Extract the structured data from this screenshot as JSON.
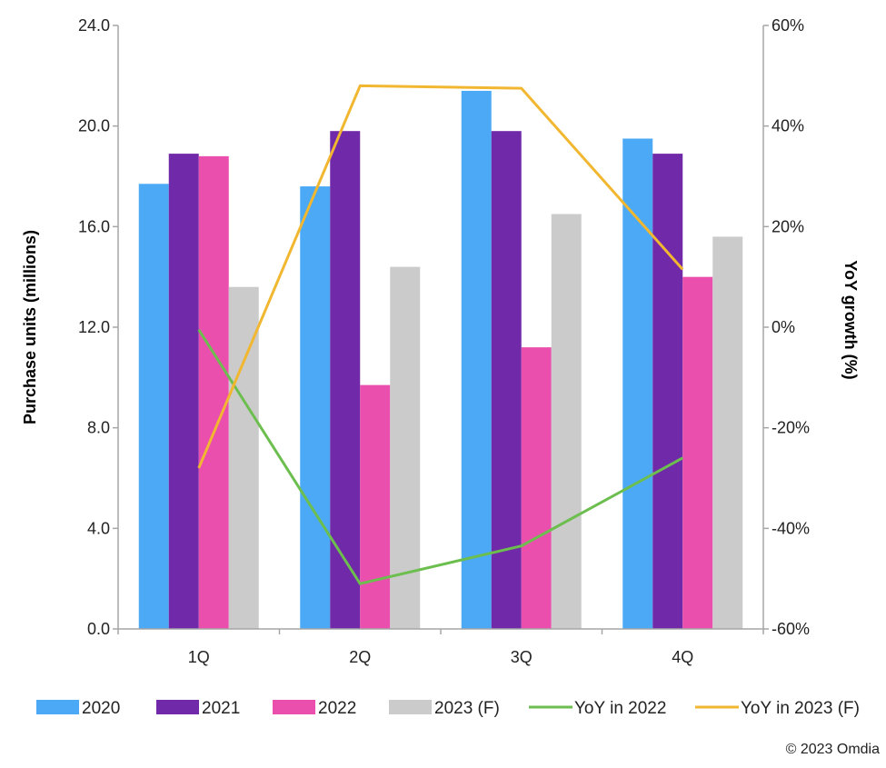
{
  "chart_data": {
    "type": "bar",
    "categories": [
      "1Q",
      "2Q",
      "3Q",
      "4Q"
    ],
    "series": [
      {
        "name": "2020",
        "kind": "bar",
        "axis": "left",
        "color": "#4BA9F5",
        "values": [
          17.7,
          17.6,
          21.4,
          19.5
        ]
      },
      {
        "name": "2021",
        "kind": "bar",
        "axis": "left",
        "color": "#7029A8",
        "values": [
          18.9,
          19.8,
          19.8,
          18.9
        ]
      },
      {
        "name": "2022",
        "kind": "bar",
        "axis": "left",
        "color": "#EA4FAE",
        "values": [
          18.8,
          9.7,
          11.2,
          14.0
        ]
      },
      {
        "name": "2023 (F)",
        "kind": "bar",
        "axis": "left",
        "color": "#CBCBCB",
        "values": [
          13.6,
          14.4,
          16.5,
          15.6
        ]
      },
      {
        "name": "YoY in 2022",
        "kind": "line",
        "axis": "right",
        "color": "#6CBE4E",
        "values": [
          -0.5,
          -51,
          -43.5,
          -26
        ]
      },
      {
        "name": "YoY in 2023 (F)",
        "kind": "line",
        "axis": "right",
        "color": "#F2B731",
        "values": [
          -28,
          48,
          47.5,
          11.5
        ]
      }
    ],
    "ylabel": "Purchase units (millions)",
    "y2label": "YoY growth (%)",
    "ylim": [
      0,
      24
    ],
    "y2lim": [
      -60,
      60
    ],
    "yticks": [
      "0.0",
      "4.0",
      "8.0",
      "12.0",
      "16.0",
      "20.0",
      "24.0"
    ],
    "y2ticks": [
      "-60%",
      "-40%",
      "-20%",
      "0%",
      "20%",
      "40%",
      "60%"
    ],
    "legend_position": "bottom",
    "grid": false
  },
  "footer": {
    "copyright": "© 2023 Omdia"
  }
}
